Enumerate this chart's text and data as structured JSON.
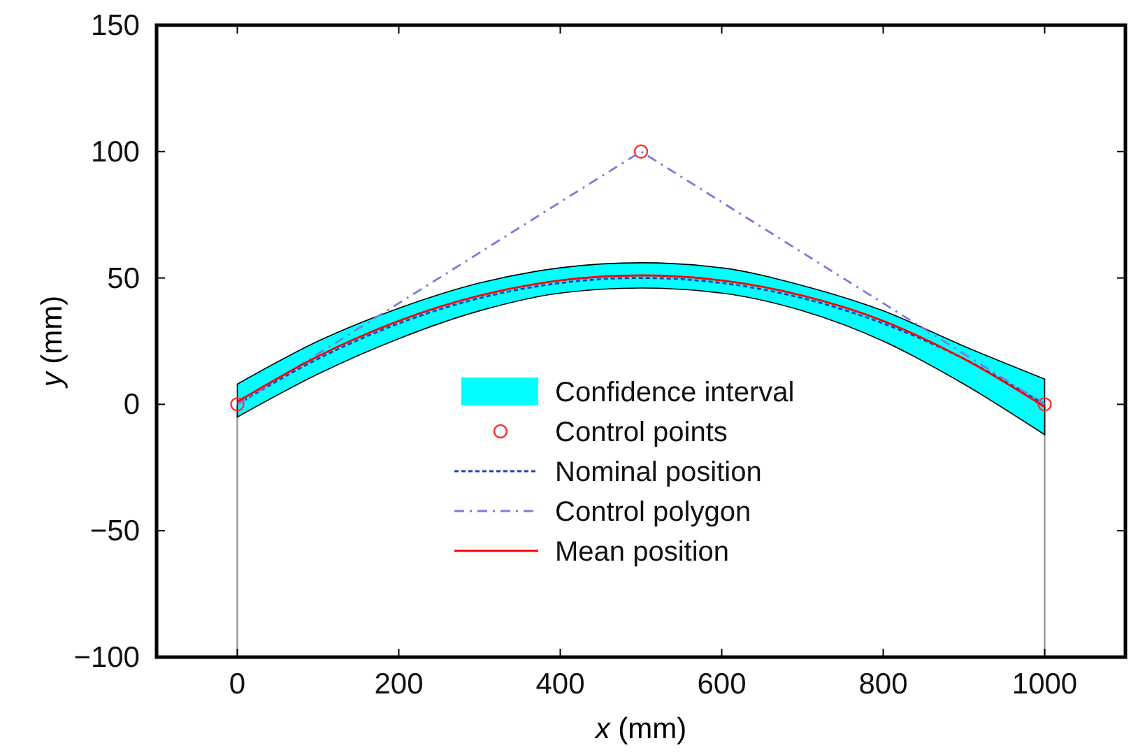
{
  "chart_data": {
    "type": "line",
    "xlabel": "x (mm)",
    "ylabel": "y (mm)",
    "xlim": [
      -100,
      1100
    ],
    "ylim": [
      -100,
      150
    ],
    "xticks": [
      0,
      200,
      400,
      600,
      800,
      1000
    ],
    "yticks": [
      -100,
      -50,
      0,
      50,
      100,
      150
    ],
    "grid": false,
    "legend": "bottom",
    "annotations": [
      "Confidence interval"
    ],
    "series": [
      {
        "name": "Control points",
        "type": "scatter",
        "color": "#ff3030",
        "marker": "circle",
        "x": [
          0,
          500,
          1000
        ],
        "values": [
          0,
          100,
          0
        ]
      },
      {
        "name": "Nominal position",
        "type": "line",
        "color": "#1f3fbf",
        "line_style": "dotted",
        "x": [
          0,
          100,
          200,
          300,
          400,
          500,
          600,
          700,
          800,
          900,
          1000
        ],
        "values": [
          0,
          18,
          32,
          42,
          48,
          50,
          48,
          42,
          32,
          18,
          0
        ]
      },
      {
        "name": "Control polygon",
        "type": "line",
        "color": "#7b7be0",
        "line_style": "dashed",
        "x": [
          0,
          500,
          1000
        ],
        "values": [
          0,
          100,
          0
        ]
      },
      {
        "name": "Mean position",
        "type": "line",
        "color": "#ff0000",
        "line_style": "solid",
        "x": [
          0,
          100,
          200,
          300,
          400,
          500,
          600,
          700,
          800,
          900,
          1000
        ],
        "values": [
          1,
          19,
          33,
          43,
          49,
          51,
          49,
          43,
          33,
          18,
          -1
        ],
        "lower": [
          -5,
          12,
          26,
          37,
          44,
          46,
          44,
          37,
          25,
          8,
          -12
        ],
        "upper": [
          8,
          25,
          38,
          48,
          54,
          56,
          54,
          47,
          37,
          23,
          10
        ]
      }
    ],
    "ref_lines": [
      {
        "axis": "x",
        "value": 0,
        "color": "#999999"
      },
      {
        "axis": "x",
        "value": 1000,
        "color": "#999999"
      }
    ]
  }
}
